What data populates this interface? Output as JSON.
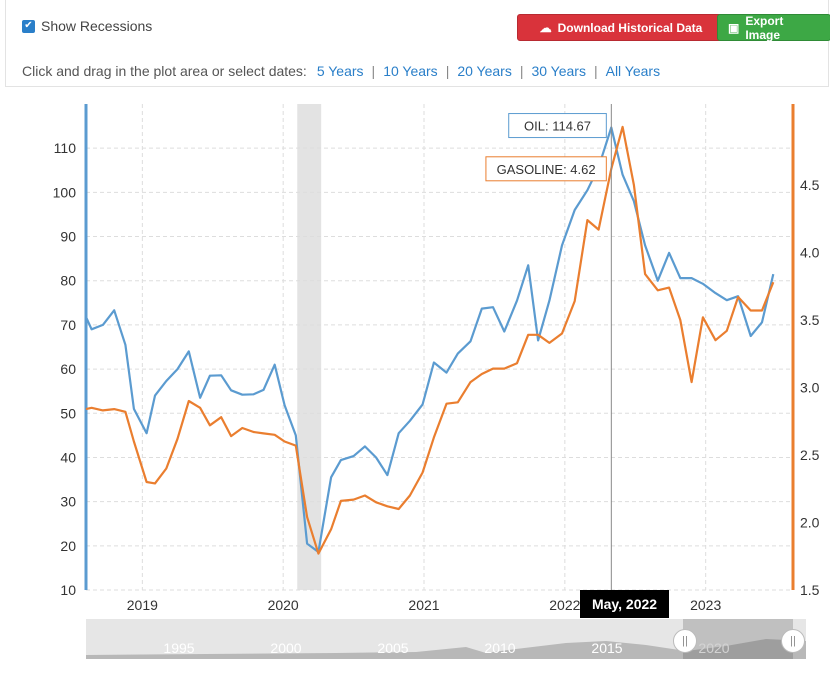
{
  "toolbar": {
    "show_recessions": "Show Recessions",
    "download_label": "Download Historical Data",
    "export_label": "Export Image",
    "dates_prompt": "Click and drag in the plot area or select dates:",
    "ranges": [
      "5 Years",
      "10 Years",
      "20 Years",
      "30 Years",
      "All Years"
    ]
  },
  "tooltip": {
    "date": "May, 2022",
    "oil": "OIL: 114.67",
    "gasoline": "GASOLINE: 4.62"
  },
  "navigator": {
    "years": [
      "1995",
      "2000",
      "2005",
      "2010",
      "2015",
      "2020"
    ]
  },
  "colors": {
    "oil": "#5b9bd0",
    "gasoline": "#ea7e2f",
    "recession": "#e3e3e3"
  },
  "chart_data": {
    "type": "line",
    "x_ticks": [
      "2019",
      "2020",
      "2021",
      "2022",
      "2023"
    ],
    "left_axis": {
      "min": 10,
      "max": 120,
      "ticks": [
        10,
        20,
        30,
        40,
        50,
        60,
        70,
        80,
        90,
        100,
        110
      ]
    },
    "right_axis": {
      "min": 1.5,
      "max": 5.1,
      "ticks": [
        1.5,
        2.0,
        2.5,
        3.0,
        3.5,
        4.0,
        4.5
      ]
    },
    "recession": {
      "start": 2020.1,
      "end": 2020.27
    },
    "x_range": [
      2018.6,
      2023.62
    ],
    "series": [
      {
        "name": "OIL",
        "axis": "left",
        "points": [
          [
            2018.6,
            71.8
          ],
          [
            2018.64,
            69
          ],
          [
            2018.72,
            70
          ],
          [
            2018.8,
            73.3
          ],
          [
            2018.88,
            65.5
          ],
          [
            2018.94,
            51
          ],
          [
            2019.03,
            45.5
          ],
          [
            2019.09,
            54
          ],
          [
            2019.17,
            57.3
          ],
          [
            2019.25,
            60
          ],
          [
            2019.33,
            64
          ],
          [
            2019.41,
            53.5
          ],
          [
            2019.48,
            58.5
          ],
          [
            2019.56,
            58.6
          ],
          [
            2019.63,
            55.2
          ],
          [
            2019.71,
            54.2
          ],
          [
            2019.79,
            54.3
          ],
          [
            2019.86,
            55.3
          ],
          [
            2019.94,
            61
          ],
          [
            2020.01,
            51.8
          ],
          [
            2020.09,
            45
          ],
          [
            2020.17,
            20.5
          ],
          [
            2020.25,
            18.6
          ],
          [
            2020.34,
            35.5
          ],
          [
            2020.41,
            39.4
          ],
          [
            2020.5,
            40.3
          ],
          [
            2020.58,
            42.5
          ],
          [
            2020.66,
            40
          ],
          [
            2020.74,
            36
          ],
          [
            2020.82,
            45.5
          ],
          [
            2020.9,
            48.3
          ],
          [
            2020.99,
            52
          ],
          [
            2021.07,
            61.5
          ],
          [
            2021.16,
            59.2
          ],
          [
            2021.24,
            63.5
          ],
          [
            2021.33,
            66.3
          ],
          [
            2021.41,
            73.7
          ],
          [
            2021.49,
            74
          ],
          [
            2021.57,
            68.5
          ],
          [
            2021.66,
            75.5
          ],
          [
            2021.74,
            83.5
          ],
          [
            2021.81,
            66.5
          ],
          [
            2021.89,
            75.5
          ],
          [
            2021.98,
            88
          ],
          [
            2022.07,
            96
          ],
          [
            2022.16,
            100.5
          ],
          [
            2022.24,
            105.7
          ],
          [
            2022.33,
            114.67
          ],
          [
            2022.41,
            104
          ],
          [
            2022.49,
            98
          ],
          [
            2022.57,
            88
          ],
          [
            2022.66,
            80
          ],
          [
            2022.74,
            86.3
          ],
          [
            2022.82,
            80.6
          ],
          [
            2022.9,
            80.6
          ],
          [
            2022.98,
            79.3
          ],
          [
            2023.07,
            77.2
          ],
          [
            2023.15,
            75.6
          ],
          [
            2023.23,
            76.5
          ],
          [
            2023.32,
            67.5
          ],
          [
            2023.4,
            70.6
          ],
          [
            2023.48,
            81.5
          ]
        ]
      },
      {
        "name": "GASOLINE",
        "axis": "right",
        "points": [
          [
            2018.6,
            2.84
          ],
          [
            2018.64,
            2.85
          ],
          [
            2018.72,
            2.83
          ],
          [
            2018.8,
            2.84
          ],
          [
            2018.88,
            2.82
          ],
          [
            2018.94,
            2.6
          ],
          [
            2019.03,
            2.3
          ],
          [
            2019.09,
            2.29
          ],
          [
            2019.17,
            2.4
          ],
          [
            2019.25,
            2.62
          ],
          [
            2019.33,
            2.9
          ],
          [
            2019.41,
            2.85
          ],
          [
            2019.48,
            2.72
          ],
          [
            2019.56,
            2.78
          ],
          [
            2019.63,
            2.64
          ],
          [
            2019.71,
            2.7
          ],
          [
            2019.79,
            2.67
          ],
          [
            2019.86,
            2.66
          ],
          [
            2019.94,
            2.65
          ],
          [
            2020.01,
            2.6
          ],
          [
            2020.09,
            2.57
          ],
          [
            2020.17,
            2.04
          ],
          [
            2020.25,
            1.77
          ],
          [
            2020.34,
            1.95
          ],
          [
            2020.41,
            2.16
          ],
          [
            2020.5,
            2.17
          ],
          [
            2020.58,
            2.2
          ],
          [
            2020.66,
            2.15
          ],
          [
            2020.74,
            2.12
          ],
          [
            2020.82,
            2.1
          ],
          [
            2020.9,
            2.2
          ],
          [
            2020.99,
            2.37
          ],
          [
            2021.07,
            2.63
          ],
          [
            2021.16,
            2.88
          ],
          [
            2021.24,
            2.89
          ],
          [
            2021.33,
            3.04
          ],
          [
            2021.41,
            3.1
          ],
          [
            2021.49,
            3.14
          ],
          [
            2021.57,
            3.14
          ],
          [
            2021.66,
            3.18
          ],
          [
            2021.74,
            3.39
          ],
          [
            2021.81,
            3.39
          ],
          [
            2021.89,
            3.33
          ],
          [
            2021.98,
            3.4
          ],
          [
            2022.07,
            3.64
          ],
          [
            2022.16,
            4.24
          ],
          [
            2022.24,
            4.17
          ],
          [
            2022.33,
            4.62
          ],
          [
            2022.41,
            4.93
          ],
          [
            2022.49,
            4.5
          ],
          [
            2022.57,
            3.84
          ],
          [
            2022.66,
            3.72
          ],
          [
            2022.74,
            3.74
          ],
          [
            2022.82,
            3.5
          ],
          [
            2022.9,
            3.04
          ],
          [
            2022.98,
            3.52
          ],
          [
            2023.07,
            3.35
          ],
          [
            2023.15,
            3.42
          ],
          [
            2023.23,
            3.67
          ],
          [
            2023.32,
            3.57
          ],
          [
            2023.4,
            3.57
          ],
          [
            2023.48,
            3.78
          ]
        ]
      }
    ]
  }
}
